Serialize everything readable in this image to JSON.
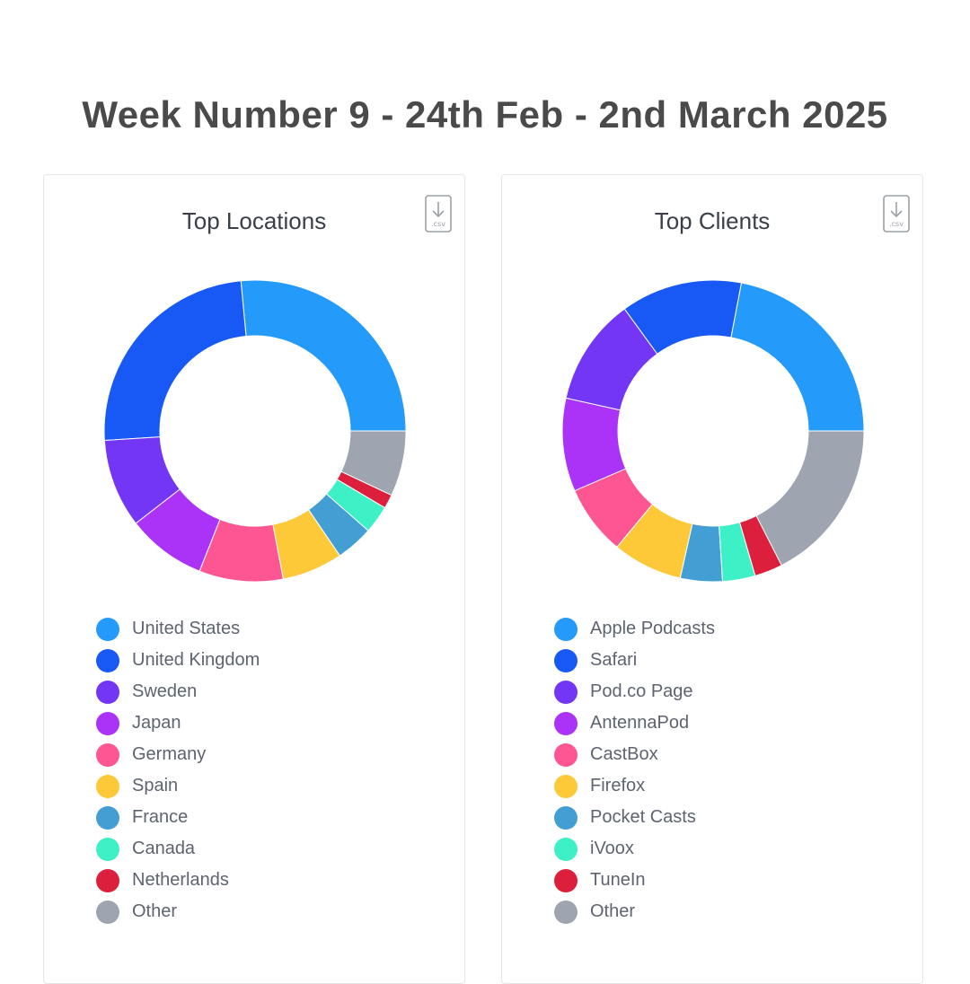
{
  "page": {
    "title": "Week Number 9 - 24th Feb - 2nd March 2025"
  },
  "icons": {
    "download": "csv-download-icon",
    "csv_text": ".csv"
  },
  "chart_data": [
    {
      "type": "pie",
      "title": "Top Locations",
      "donut": true,
      "legend_position": "bottom",
      "categories": [
        "United States",
        "United Kingdom",
        "Sweden",
        "Japan",
        "Germany",
        "Spain",
        "France",
        "Canada",
        "Netherlands",
        "Other"
      ],
      "values": [
        26.5,
        24.5,
        9.5,
        8.5,
        9.0,
        6.5,
        4.0,
        3.0,
        1.5,
        7.0
      ],
      "colors": [
        "#249bfb",
        "#1859f5",
        "#7236f4",
        "#ab33f8",
        "#fd5692",
        "#fdc938",
        "#439ed4",
        "#3ef0c6",
        "#dc1f3c",
        "#9ea4b0"
      ]
    },
    {
      "type": "pie",
      "title": "Top Clients",
      "donut": true,
      "legend_position": "bottom",
      "categories": [
        "Apple Podcasts",
        "Safari",
        "Pod.co Page",
        "AntennaPod",
        "CastBox",
        "Firefox",
        "Pocket Casts",
        "iVoox",
        "TuneIn",
        "Other"
      ],
      "values": [
        22.0,
        13.0,
        11.5,
        10.0,
        7.5,
        7.5,
        4.5,
        3.5,
        3.0,
        17.5
      ],
      "colors": [
        "#249bfb",
        "#1859f5",
        "#7236f4",
        "#ab33f8",
        "#fd5692",
        "#fdc938",
        "#439ed4",
        "#3ef0c6",
        "#dc1f3c",
        "#9ea4b0"
      ]
    }
  ]
}
